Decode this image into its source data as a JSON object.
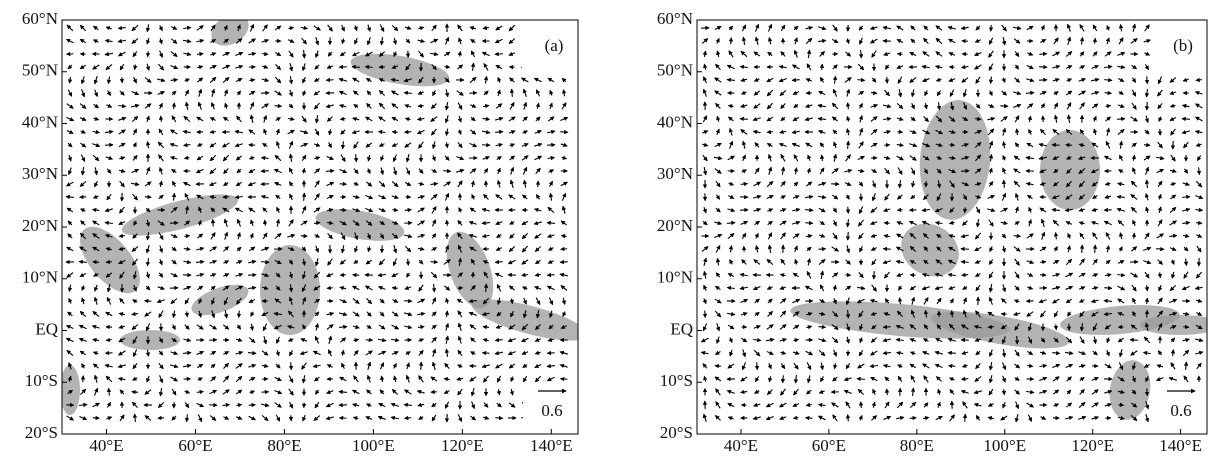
{
  "panels": [
    {
      "label": "(a)",
      "reference_value": 0.6,
      "lat_labels": [
        "60°N",
        "50°N",
        "40°N",
        "30°N",
        "20°N",
        "10°N",
        "EQ",
        "10°S",
        "20°S"
      ],
      "lon_labels": [
        "40°E",
        "60°E",
        "80°E",
        "100°E",
        "120°E",
        "140°E"
      ]
    },
    {
      "label": "(b)",
      "reference_value": 0.6,
      "lat_labels": [
        "60°N",
        "50°N",
        "40°N",
        "30°N",
        "20°N",
        "10°N",
        "EQ",
        "10°S",
        "20°S"
      ],
      "lon_labels": [
        "40°E",
        "60°E",
        "80°E",
        "100°E",
        "120°E",
        "140°E"
      ]
    }
  ]
}
